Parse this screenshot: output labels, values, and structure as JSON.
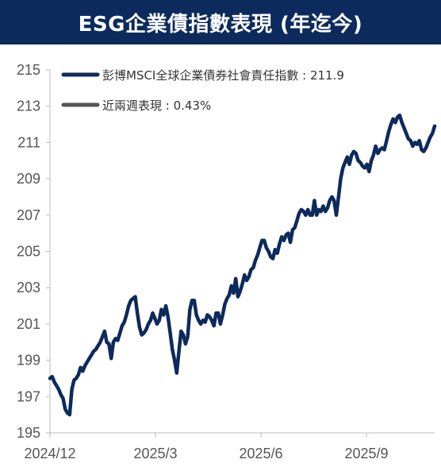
{
  "title": "ESG企業債指數表現 (年迄今)",
  "colors": {
    "header_bg": "#0d2a5c",
    "series_line": "#0d2a5c",
    "legend2_line": "#555555",
    "axis": "#bbbbbb"
  },
  "chart_data": {
    "type": "line",
    "title": "ESG企業債指數表現 (年迄今)",
    "xlabel": "",
    "ylabel": "",
    "ylim": [
      195,
      215
    ],
    "yticks": [
      195,
      197,
      199,
      201,
      203,
      205,
      207,
      209,
      211,
      213,
      215
    ],
    "xtick_labels": [
      "2024/12",
      "2025/3",
      "2025/6",
      "2025/9"
    ],
    "grid": false,
    "legend_position": "top-left",
    "legend": [
      "彭博MSCI全球企業債券社會責任指數 : 211.9",
      "近兩週表現 : 0.43%"
    ],
    "series": [
      {
        "name": "彭博MSCI全球企業債券社會責任指數",
        "values": [
          198.0,
          198.1,
          197.8,
          197.6,
          197.4,
          197.1,
          196.9,
          196.3,
          196.1,
          196.0,
          197.4,
          197.9,
          198.0,
          198.2,
          198.6,
          198.4,
          198.7,
          198.9,
          199.1,
          199.3,
          199.5,
          199.6,
          199.8,
          200.0,
          200.3,
          200.6,
          200.0,
          199.9,
          199.1,
          200.0,
          200.2,
          200.1,
          200.5,
          200.9,
          201.1,
          201.5,
          202.0,
          202.3,
          202.4,
          202.5,
          201.6,
          200.8,
          200.4,
          200.5,
          200.7,
          201.0,
          201.2,
          201.6,
          201.3,
          201.0,
          201.2,
          201.8,
          201.5,
          202.0,
          201.4,
          200.5,
          199.6,
          199.0,
          198.3,
          199.5,
          200.6,
          200.4,
          199.9,
          200.3,
          201.8,
          202.3,
          202.3,
          201.5,
          201.2,
          201.0,
          201.2,
          201.1,
          201.5,
          201.4,
          201.2,
          200.9,
          201.6,
          201.6,
          201.0,
          201.5,
          202.1,
          202.4,
          202.6,
          203.1,
          202.7,
          203.5,
          202.5,
          202.8,
          203.2,
          203.7,
          203.4,
          203.6,
          204.0,
          204.1,
          204.5,
          204.8,
          205.2,
          205.6,
          205.6,
          205.2,
          205.0,
          204.7,
          204.6,
          205.1,
          204.9,
          205.4,
          205.8,
          205.6,
          205.9,
          206.0,
          205.5,
          206.2,
          206.3,
          206.7,
          207.1,
          207.3,
          207.2,
          207.0,
          207.3,
          207.0,
          207.0,
          207.8,
          207.0,
          207.3,
          207.2,
          207.5,
          207.2,
          207.4,
          207.8,
          208.0,
          207.8,
          207.0,
          208.0,
          209.0,
          209.6,
          209.9,
          210.2,
          209.8,
          210.3,
          210.5,
          210.4,
          210.0,
          209.9,
          209.7,
          209.6,
          209.8,
          209.4,
          210.0,
          210.3,
          210.8,
          210.4,
          210.6,
          210.7,
          210.6,
          211.1,
          211.6,
          212.0,
          212.3,
          212.1,
          212.4,
          212.5,
          212.1,
          211.8,
          211.5,
          211.2,
          211.1,
          210.8,
          211.0,
          210.9,
          211.1,
          210.6,
          210.5,
          210.7,
          211.0,
          211.3,
          211.5,
          211.9
        ]
      }
    ]
  }
}
